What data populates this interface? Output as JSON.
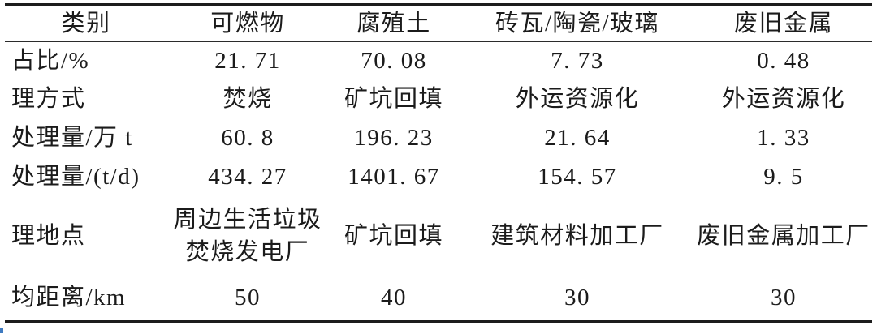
{
  "colors": {
    "text": "#1b1b1b",
    "rule": "#1d1d1d",
    "background": "#ffffff",
    "artifact_blue": "#3f7ac0"
  },
  "table": {
    "header": [
      "类别",
      "可燃物",
      "腐殖土",
      "砖瓦/陶瓷/玻璃",
      "废旧金属"
    ],
    "rows": [
      {
        "label": "占比/%",
        "cells": [
          "21. 71",
          "70. 08",
          "7. 73",
          "0. 48"
        ]
      },
      {
        "label": "理方式",
        "cells": [
          "焚烧",
          "矿坑回填",
          "外运资源化",
          "外运资源化"
        ]
      },
      {
        "label": "处理量/万 t",
        "cells": [
          "60. 8",
          "196. 23",
          "21. 64",
          "1. 33"
        ]
      },
      {
        "label": "处理量/(t/d)",
        "cells": [
          "434. 27",
          "1401. 67",
          "154. 57",
          "9. 5"
        ]
      },
      {
        "label": "理地点",
        "cells": [
          "周边生活垃圾\n焚烧发电厂",
          "矿坑回填",
          "建筑材料加工厂",
          "废旧金属加工厂"
        ]
      },
      {
        "label": "均距离/km",
        "cells": [
          "50",
          "40",
          "30",
          "30"
        ]
      }
    ]
  }
}
